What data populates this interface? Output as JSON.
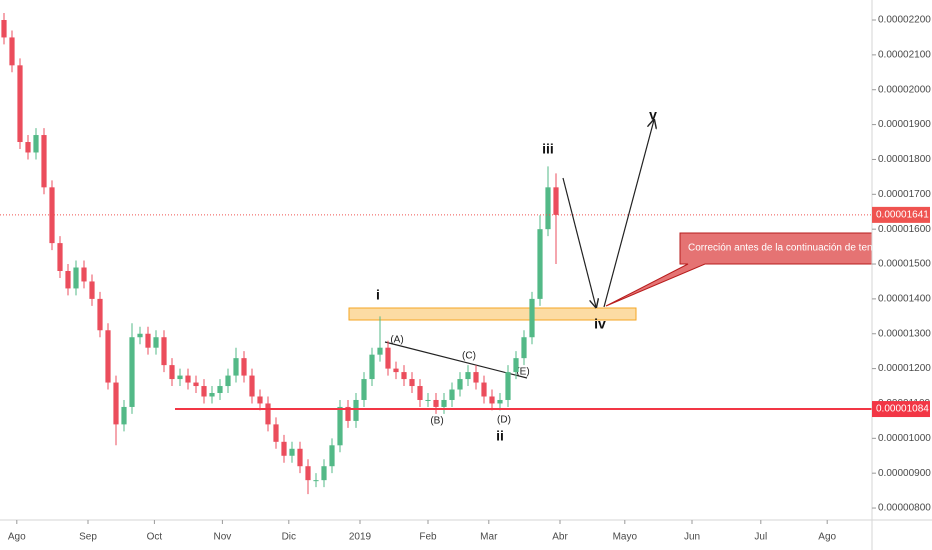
{
  "chart_data": {
    "type": "candlestick",
    "up_color": "#53b987",
    "down_color": "#eb4d5c",
    "xlim": [
      -0.5,
      108.5
    ],
    "ylim": [
      7.657e-06,
      2.2574e-05
    ],
    "xticks": [
      {
        "value": 1.6,
        "label": "Ago"
      },
      {
        "value": 10.5,
        "label": "Sep"
      },
      {
        "value": 18.8,
        "label": "Oct"
      },
      {
        "value": 27.3,
        "label": "Nov"
      },
      {
        "value": 35.6,
        "label": "Dic"
      },
      {
        "value": 44.5,
        "label": "2019"
      },
      {
        "value": 53,
        "label": "Feb"
      },
      {
        "value": 60.6,
        "label": "Mar"
      },
      {
        "value": 69.5,
        "label": "Abr"
      },
      {
        "value": 77.6,
        "label": "Mayo"
      },
      {
        "value": 86,
        "label": "Jun"
      },
      {
        "value": 94.6,
        "label": "Jul"
      },
      {
        "value": 102.9,
        "label": "Ago"
      }
    ],
    "yticks": [
      {
        "value": 2.2e-05,
        "label": "0.00002200"
      },
      {
        "value": 2.1e-05,
        "label": "0.00002100"
      },
      {
        "value": 2e-05,
        "label": "0.00002000"
      },
      {
        "value": 1.9e-05,
        "label": "0.00001900"
      },
      {
        "value": 1.8e-05,
        "label": "0.00001800"
      },
      {
        "value": 1.7e-05,
        "label": "0.00001700"
      },
      {
        "value": 1.6e-05,
        "label": "0.00001600"
      },
      {
        "value": 1.5e-05,
        "label": "0.00001500"
      },
      {
        "value": 1.4e-05,
        "label": "0.00001400"
      },
      {
        "value": 1.3e-05,
        "label": "0.00001300"
      },
      {
        "value": 1.2e-05,
        "label": "0.00001200"
      },
      {
        "value": 1.1e-05,
        "label": "0.00001100"
      },
      {
        "value": 1e-05,
        "label": "0.00001000"
      },
      {
        "value": 9e-06,
        "label": "0.00000900"
      },
      {
        "value": 8e-06,
        "label": "0.00000800"
      }
    ],
    "open": [
      2.2e-05,
      2.15e-05,
      2.07e-05,
      1.85e-05,
      1.82e-05,
      1.87e-05,
      1.72e-05,
      1.56e-05,
      1.48e-05,
      1.43e-05,
      1.49e-05,
      1.45e-05,
      1.4e-05,
      1.31e-05,
      1.16e-05,
      1.04e-05,
      1.09e-05,
      1.29e-05,
      1.3e-05,
      1.26e-05,
      1.29e-05,
      1.21e-05,
      1.17e-05,
      1.18e-05,
      1.16e-05,
      1.15e-05,
      1.12e-05,
      1.13e-05,
      1.15e-05,
      1.18e-05,
      1.23e-05,
      1.18e-05,
      1.12e-05,
      1.1e-05,
      1.04e-05,
      9.9e-06,
      9.5e-06,
      9.7e-06,
      9.2e-06,
      8.8e-06,
      8.8e-06,
      9.2e-06,
      9.8e-06,
      1.09e-05,
      1.05e-05,
      1.11e-05,
      1.17e-05,
      1.24e-05,
      1.26e-05,
      1.2e-05,
      1.19e-05,
      1.17e-05,
      1.15e-05,
      1.11e-05,
      1.11e-05,
      1.09e-05,
      1.11e-05,
      1.14e-05,
      1.17e-05,
      1.19e-05,
      1.16e-05,
      1.12e-05,
      1.1e-05,
      1.11e-05,
      1.19e-05,
      1.23e-05,
      1.29e-05,
      1.4e-05,
      1.6e-05,
      1.72e-05
    ],
    "high": [
      2.22e-05,
      2.17e-05,
      2.09e-05,
      1.87e-05,
      1.89e-05,
      1.89e-05,
      1.74e-05,
      1.58e-05,
      1.5e-05,
      1.51e-05,
      1.51e-05,
      1.47e-05,
      1.42e-05,
      1.33e-05,
      1.18e-05,
      1.11e-05,
      1.33e-05,
      1.32e-05,
      1.32e-05,
      1.31e-05,
      1.31e-05,
      1.23e-05,
      1.2e-05,
      1.2e-05,
      1.18e-05,
      1.17e-05,
      1.15e-05,
      1.17e-05,
      1.2e-05,
      1.26e-05,
      1.25e-05,
      1.2e-05,
      1.14e-05,
      1.12e-05,
      1.06e-05,
      1.01e-05,
      9.9e-06,
      9.9e-06,
      9.4e-06,
      9e-06,
      9.4e-06,
      1e-05,
      1.11e-05,
      1.11e-05,
      1.13e-05,
      1.19e-05,
      1.26e-05,
      1.35e-05,
      1.28e-05,
      1.22e-05,
      1.21e-05,
      1.19e-05,
      1.17e-05,
      1.13e-05,
      1.13e-05,
      1.13e-05,
      1.16e-05,
      1.19e-05,
      1.21e-05,
      1.21e-05,
      1.18e-05,
      1.14e-05,
      1.13e-05,
      1.21e-05,
      1.25e-05,
      1.31e-05,
      1.42e-05,
      1.64e-05,
      1.78e-05,
      1.76e-05
    ],
    "low": [
      2.13e-05,
      2.05e-05,
      1.83e-05,
      1.8e-05,
      1.8e-05,
      1.7e-05,
      1.54e-05,
      1.46e-05,
      1.41e-05,
      1.41e-05,
      1.43e-05,
      1.38e-05,
      1.29e-05,
      1.14e-05,
      9.8e-06,
      1.02e-05,
      1.07e-05,
      1.27e-05,
      1.24e-05,
      1.24e-05,
      1.19e-05,
      1.15e-05,
      1.15e-05,
      1.14e-05,
      1.13e-05,
      1.1e-05,
      1.1e-05,
      1.11e-05,
      1.13e-05,
      1.16e-05,
      1.16e-05,
      1.1e-05,
      1.08e-05,
      1.02e-05,
      9.7e-06,
      9.3e-06,
      9.3e-06,
      9e-06,
      8.4e-06,
      8.6e-06,
      8.6e-06,
      9e-06,
      9.6e-06,
      1.03e-05,
      1.03e-05,
      1.09e-05,
      1.15e-05,
      1.22e-05,
      1.18e-05,
      1.17e-05,
      1.15e-05,
      1.13e-05,
      1.09e-05,
      1.09e-05,
      1.07e-05,
      1.07e-05,
      1.09e-05,
      1.12e-05,
      1.15e-05,
      1.14e-05,
      1.1e-05,
      1.08e-05,
      1.08e-05,
      1.09e-05,
      1.17e-05,
      1.21e-05,
      1.27e-05,
      1.38e-05,
      1.58e-05,
      1.5e-05
    ],
    "close": [
      2.15e-05,
      2.07e-05,
      1.85e-05,
      1.82e-05,
      1.87e-05,
      1.72e-05,
      1.56e-05,
      1.48e-05,
      1.43e-05,
      1.49e-05,
      1.45e-05,
      1.4e-05,
      1.31e-05,
      1.16e-05,
      1.04e-05,
      1.09e-05,
      1.29e-05,
      1.3e-05,
      1.26e-05,
      1.29e-05,
      1.21e-05,
      1.17e-05,
      1.18e-05,
      1.16e-05,
      1.15e-05,
      1.12e-05,
      1.13e-05,
      1.15e-05,
      1.18e-05,
      1.23e-05,
      1.18e-05,
      1.12e-05,
      1.1e-05,
      1.04e-05,
      9.9e-06,
      9.5e-06,
      9.7e-06,
      9.2e-06,
      8.8e-06,
      8.8e-06,
      9.2e-06,
      9.8e-06,
      1.09e-05,
      1.05e-05,
      1.11e-05,
      1.17e-05,
      1.24e-05,
      1.26e-05,
      1.2e-05,
      1.19e-05,
      1.17e-05,
      1.15e-05,
      1.11e-05,
      1.11e-05,
      1.09e-05,
      1.11e-05,
      1.14e-05,
      1.17e-05,
      1.19e-05,
      1.16e-05,
      1.12e-05,
      1.1e-05,
      1.11e-05,
      1.19e-05,
      1.23e-05,
      1.29e-05,
      1.4e-05,
      1.6e-05,
      1.72e-05,
      1.641e-05
    ],
    "last_price": {
      "value": 1.641e-05,
      "label": "0.00001641",
      "color": "#ef5350"
    },
    "support_level": {
      "value": 1.084e-05,
      "label": "0.00001084",
      "color": "#f23645"
    },
    "annotations": [
      "i",
      "ii",
      "iii",
      "iv",
      "v",
      "(A)",
      "(B)",
      "(C)",
      "(D)",
      "(E)",
      "Correción antes de la continuación de tendencia"
    ]
  }
}
